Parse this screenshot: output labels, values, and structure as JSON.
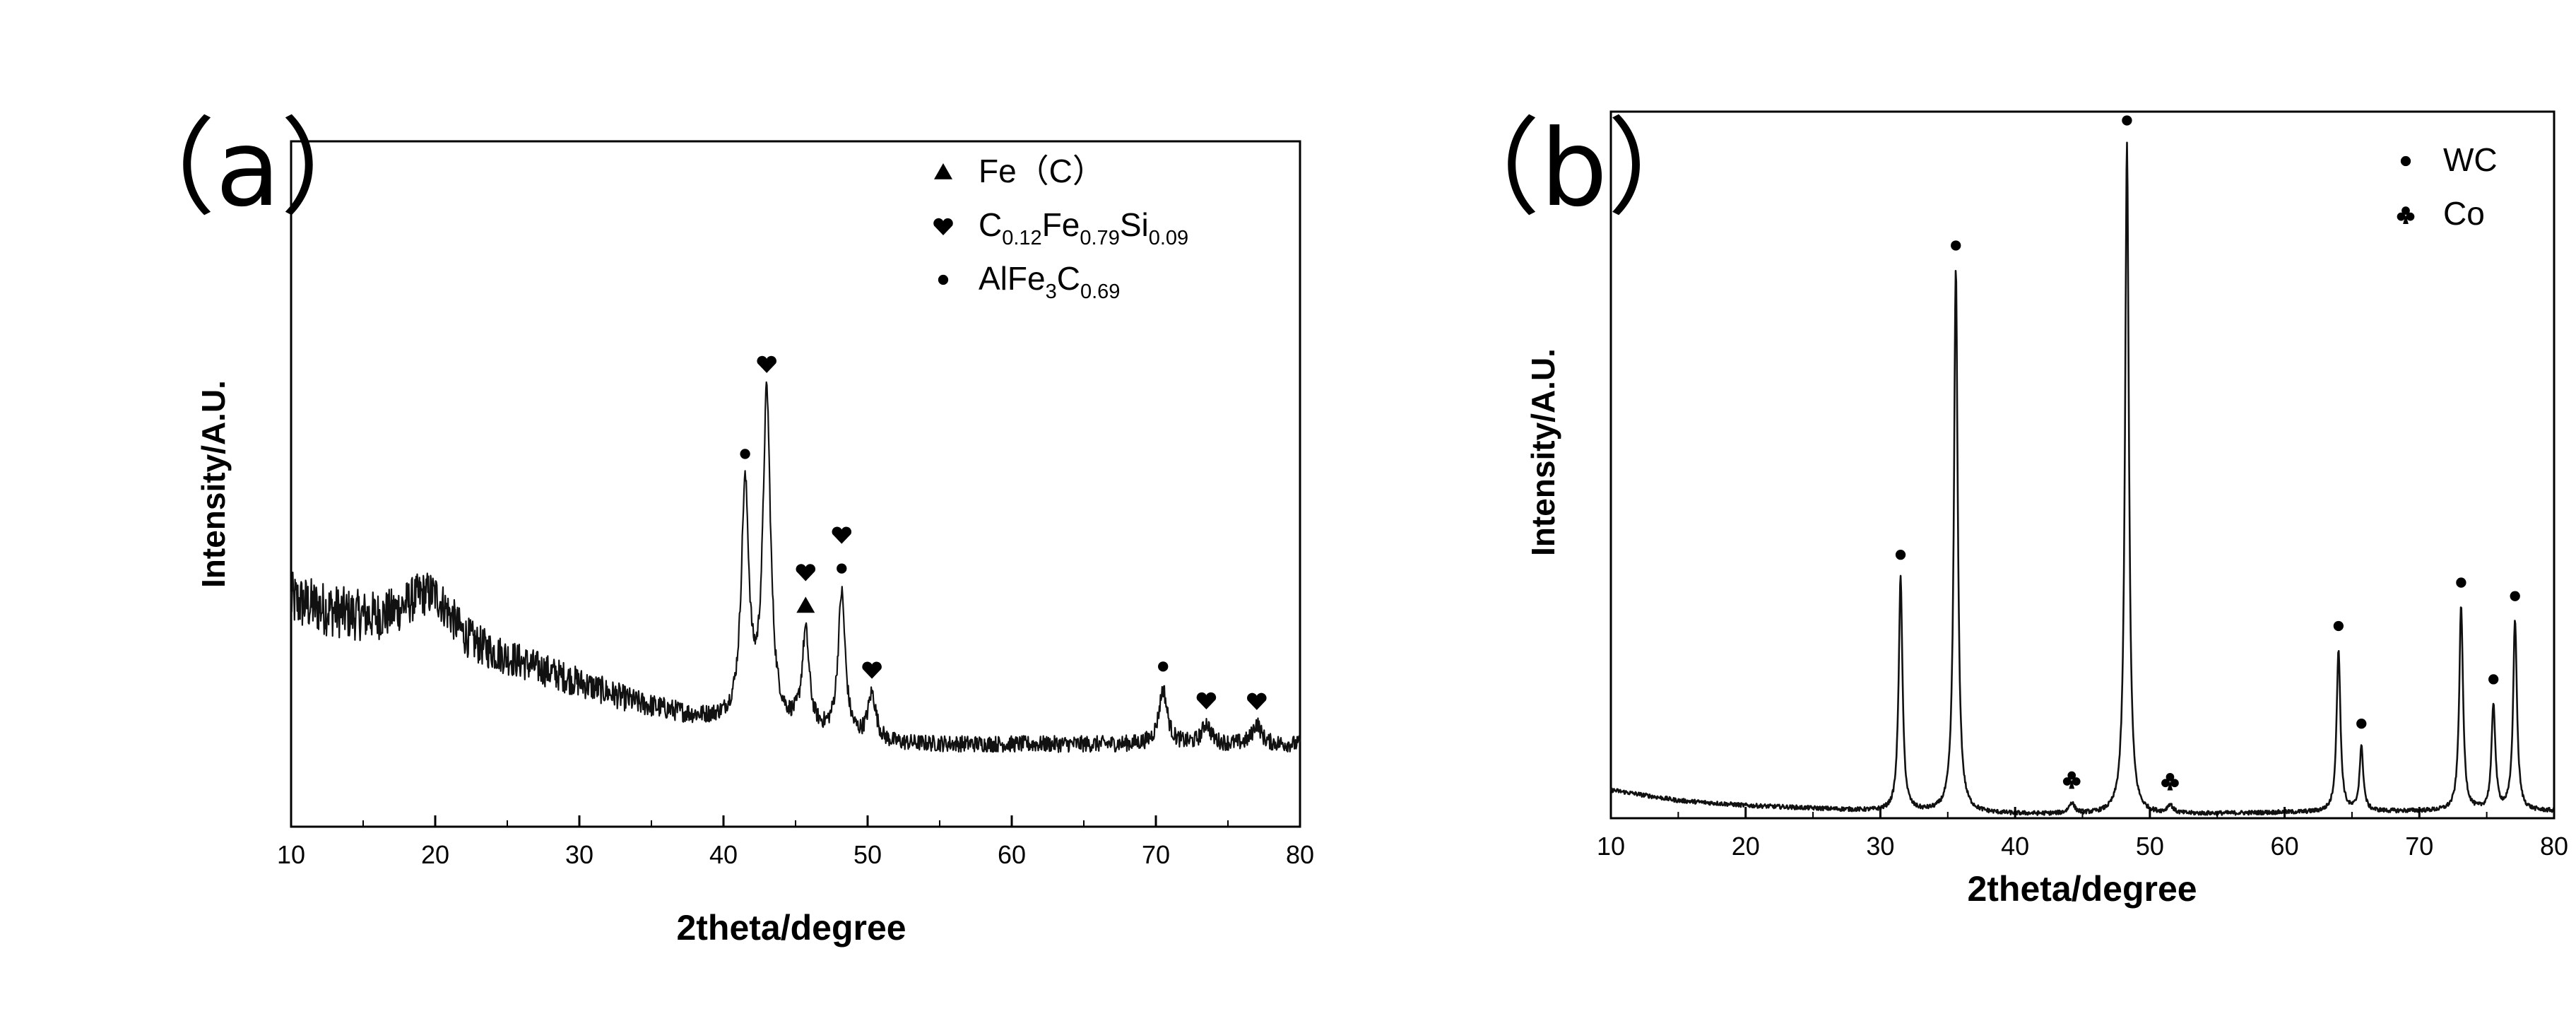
{
  "chart_data": [
    {
      "type": "line",
      "panel_label": "（a）",
      "xlabel": "2theta/degree",
      "ylabel": "Intensity/A.U.",
      "xlim": [
        10,
        80
      ],
      "xticks": [
        10,
        20,
        30,
        40,
        50,
        60,
        70,
        80
      ],
      "yticks_shown": false,
      "noise": "high",
      "legend": {
        "placement": "top-right",
        "entries": [
          {
            "marker": "triangle-icon",
            "parts": [
              {
                "t": "Fe（C）"
              }
            ]
          },
          {
            "marker": "heart-icon",
            "parts": [
              {
                "t": "C"
              },
              {
                "t": "0.12",
                "sub": true
              },
              {
                "t": "Fe"
              },
              {
                "t": "0.79",
                "sub": true
              },
              {
                "t": "Si"
              },
              {
                "t": "0.09",
                "sub": true
              }
            ]
          },
          {
            "marker": "dot-icon",
            "parts": [
              {
                "t": "AlFe"
              },
              {
                "t": "3",
                "sub": true
              },
              {
                "t": "C"
              },
              {
                "t": "0.69",
                "sub": true
              }
            ]
          }
        ]
      },
      "baseline": [
        [
          10,
          0.33
        ],
        [
          14,
          0.31
        ],
        [
          18,
          0.3
        ],
        [
          20,
          0.3
        ],
        [
          22,
          0.27
        ],
        [
          26,
          0.24
        ],
        [
          30,
          0.21
        ],
        [
          34,
          0.18
        ],
        [
          38,
          0.16
        ],
        [
          41,
          0.15
        ],
        [
          45,
          0.14
        ],
        [
          50,
          0.12
        ],
        [
          55,
          0.12
        ],
        [
          60,
          0.12
        ],
        [
          70,
          0.12
        ],
        [
          80,
          0.12
        ]
      ],
      "bump": {
        "center": 19.5,
        "height": 0.04,
        "width": 2.2
      },
      "peaks": [
        {
          "x": 41.5,
          "height": 0.34,
          "width": 0.32,
          "markers": [
            "dot-icon"
          ]
        },
        {
          "x": 43.0,
          "height": 0.48,
          "width": 0.32,
          "markers": [
            "heart-icon"
          ]
        },
        {
          "x": 45.7,
          "height": 0.14,
          "width": 0.3,
          "markers": [
            "triangle-icon",
            "heart-icon"
          ]
        },
        {
          "x": 48.2,
          "height": 0.21,
          "width": 0.3,
          "markers": [
            "dot-icon",
            "heart-icon"
          ]
        },
        {
          "x": 50.3,
          "height": 0.07,
          "width": 0.35,
          "markers": [
            "heart-icon"
          ]
        },
        {
          "x": 70.5,
          "height": 0.08,
          "width": 0.35,
          "markers": [
            "dot-icon"
          ]
        },
        {
          "x": 73.5,
          "height": 0.03,
          "width": 0.35,
          "markers": [
            "heart-icon"
          ]
        },
        {
          "x": 77.0,
          "height": 0.03,
          "width": 0.35,
          "markers": [
            "heart-icon"
          ]
        }
      ]
    },
    {
      "type": "line",
      "panel_label": "（b）",
      "xlabel": "2theta/degree",
      "ylabel": "Intensity/A.U.",
      "xlim": [
        10,
        80
      ],
      "xticks": [
        10,
        20,
        30,
        40,
        50,
        60,
        70,
        80
      ],
      "yticks_shown": false,
      "noise": "low",
      "legend": {
        "placement": "top-right",
        "entries": [
          {
            "marker": "dot-icon",
            "parts": [
              {
                "t": "WC"
              }
            ]
          },
          {
            "marker": "club-icon",
            "parts": [
              {
                "t": "Co"
              }
            ]
          }
        ]
      },
      "baseline": [
        [
          10,
          0.04
        ],
        [
          15,
          0.025
        ],
        [
          20,
          0.018
        ],
        [
          30,
          0.01
        ],
        [
          40,
          0.006
        ],
        [
          50,
          0.005
        ],
        [
          60,
          0.008
        ],
        [
          70,
          0.01
        ],
        [
          80,
          0.01
        ]
      ],
      "bump": null,
      "peaks": [
        {
          "x": 31.5,
          "height": 0.33,
          "width": 0.17,
          "markers": [
            "dot-icon"
          ]
        },
        {
          "x": 35.6,
          "height": 0.77,
          "width": 0.17,
          "markers": [
            "dot-icon"
          ]
        },
        {
          "x": 44.2,
          "height": 0.015,
          "width": 0.25,
          "markers": [
            "club-icon"
          ]
        },
        {
          "x": 48.3,
          "height": 0.95,
          "width": 0.17,
          "markers": [
            "dot-icon"
          ]
        },
        {
          "x": 51.5,
          "height": 0.012,
          "width": 0.25,
          "markers": [
            "club-icon"
          ]
        },
        {
          "x": 64.0,
          "height": 0.23,
          "width": 0.17,
          "markers": [
            "dot-icon"
          ]
        },
        {
          "x": 65.7,
          "height": 0.09,
          "width": 0.17,
          "markers": [
            "dot-icon"
          ]
        },
        {
          "x": 73.1,
          "height": 0.29,
          "width": 0.17,
          "markers": [
            "dot-icon"
          ]
        },
        {
          "x": 75.5,
          "height": 0.15,
          "width": 0.17,
          "markers": [
            "dot-icon"
          ]
        },
        {
          "x": 77.1,
          "height": 0.27,
          "width": 0.17,
          "markers": [
            "dot-icon"
          ]
        }
      ]
    }
  ]
}
